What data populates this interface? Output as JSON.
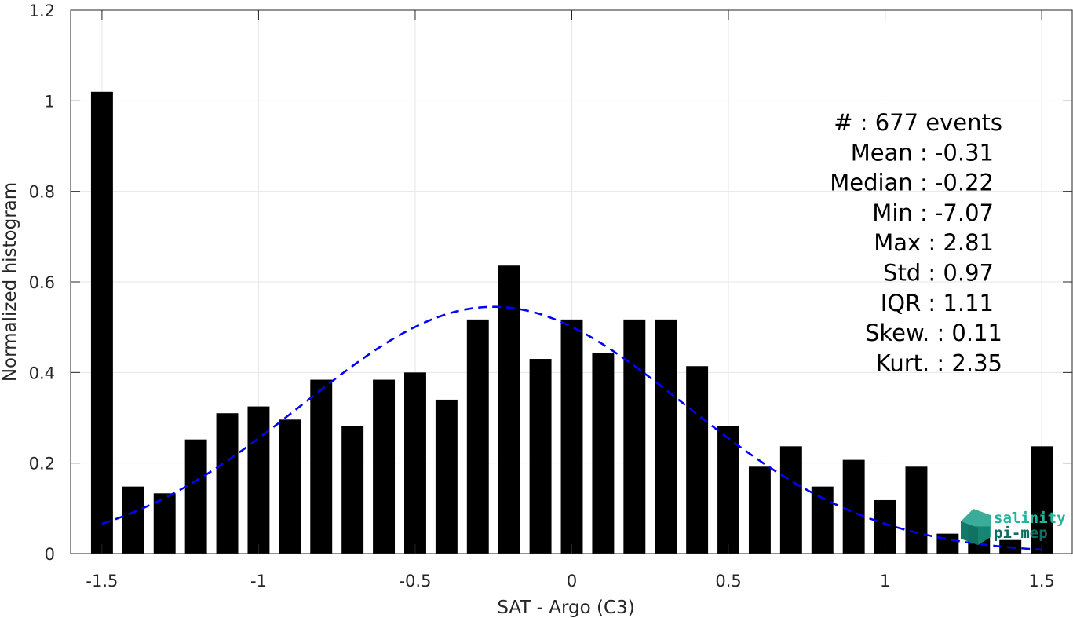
{
  "chart_data": {
    "type": "bar",
    "xlabel": "SAT - Argo (C3)",
    "ylabel": "Normalized histogram",
    "xlim": [
      -1.6,
      1.6
    ],
    "ylim": [
      0,
      1.2
    ],
    "x_ticks": [
      -1.5,
      -1,
      -0.5,
      0,
      0.5,
      1,
      1.5
    ],
    "x_tick_labels": [
      "-1.5",
      "-1",
      "-0.5",
      "0",
      "0.5",
      "1",
      "1.5"
    ],
    "y_ticks": [
      0,
      0.2,
      0.4,
      0.6,
      0.8,
      1,
      1.2
    ],
    "y_tick_labels": [
      "0",
      "0.2",
      "0.4",
      "0.6",
      "0.8",
      "1",
      "1.2"
    ],
    "grid": true,
    "bar_width": 0.07,
    "bar_color": "#000000",
    "bars": {
      "x": [
        -1.5,
        -1.4,
        -1.3,
        -1.2,
        -1.1,
        -1.0,
        -0.9,
        -0.8,
        -0.7,
        -0.6,
        -0.5,
        -0.4,
        -0.3,
        -0.2,
        -0.1,
        0.0,
        0.1,
        0.2,
        0.3,
        0.4,
        0.5,
        0.6,
        0.7,
        0.8,
        0.9,
        1.0,
        1.1,
        1.2,
        1.3,
        1.4,
        1.5
      ],
      "values": [
        1.02,
        0.148,
        0.133,
        0.252,
        0.31,
        0.325,
        0.296,
        0.384,
        0.281,
        0.384,
        0.4,
        0.34,
        0.517,
        0.636,
        0.43,
        0.517,
        0.443,
        0.517,
        0.517,
        0.414,
        0.281,
        0.192,
        0.237,
        0.148,
        0.207,
        0.118,
        0.192,
        0.044,
        0.06,
        0.03,
        0.237
      ]
    },
    "fit_curve": {
      "style": "dashed",
      "color": "#0000ff",
      "mean": -0.25,
      "std": 0.608,
      "peak": 0.545,
      "x_range": [
        -1.5,
        1.5
      ]
    }
  },
  "stats": {
    "lines": [
      "#  : 677 events",
      "Mean : -0.31",
      "Median : -0.22",
      "Min : -7.07",
      "Max : 2.81",
      "Std : 0.97",
      "IQR : 1.11",
      "Skew. : 0.11",
      "Kurt. : 2.35"
    ]
  },
  "logo": {
    "line1": "salinity",
    "line2": "pi-mep",
    "color1": "#1fb59a",
    "color2": "#0e6f60"
  }
}
